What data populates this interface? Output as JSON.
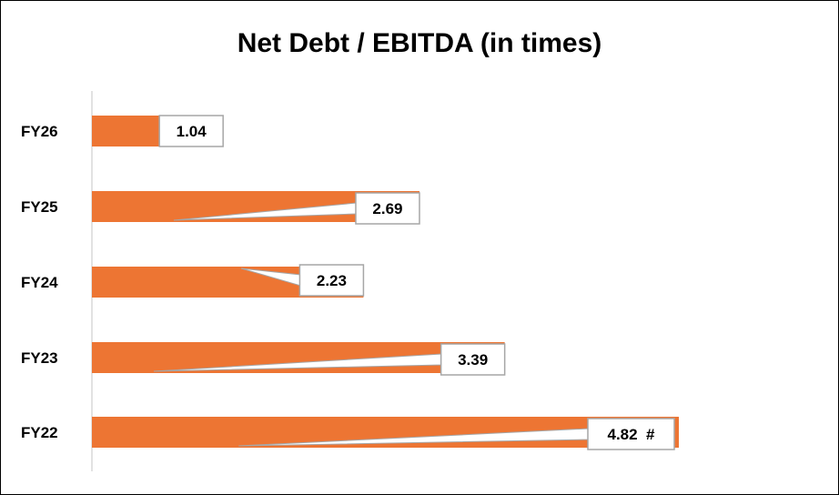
{
  "chart_data": {
    "type": "bar",
    "orientation": "horizontal",
    "title": "Net Debt / EBITDA (in times)",
    "xlabel": "",
    "ylabel": "",
    "categories": [
      "FY26",
      "FY25",
      "FY24",
      "FY23",
      "FY22"
    ],
    "values": [
      1.04,
      2.69,
      2.23,
      3.39,
      4.82
    ],
    "data_labels": [
      "1.04",
      "2.69",
      "2.23",
      "3.39",
      "4.82  #"
    ],
    "xlim": [
      0,
      4.82
    ],
    "grid": false,
    "legend": "none",
    "colors": {
      "bar": "#ED7533",
      "axis": "#d9d9d9",
      "label_border": "#a6a6a6",
      "text": "#000000"
    }
  }
}
